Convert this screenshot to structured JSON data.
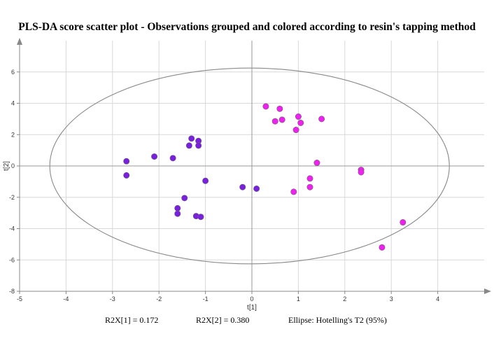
{
  "chart_data": {
    "type": "scatter",
    "title": "PLS-DA score scatter plot - Observations grouped and colored according to resin's tapping method",
    "xlabel": "t[1]",
    "ylabel": "t[2]",
    "xlim": [
      -5,
      5
    ],
    "ylim": [
      -8,
      8
    ],
    "xticks": [
      -5,
      -4,
      -3,
      -2,
      -1,
      0,
      1,
      2,
      3,
      4
    ],
    "yticks": [
      -8,
      -6,
      -4,
      -2,
      0,
      2,
      4,
      6
    ],
    "grid": true,
    "series": [
      {
        "color": "#7a1fe0",
        "points": [
          [
            -2.7,
            0.3
          ],
          [
            -2.7,
            -0.6
          ],
          [
            -2.1,
            0.6
          ],
          [
            -1.7,
            0.5
          ],
          [
            -1.3,
            1.75
          ],
          [
            -1.35,
            1.3
          ],
          [
            -1.15,
            1.6
          ],
          [
            -1.15,
            1.3
          ],
          [
            -1.0,
            -0.95
          ],
          [
            -1.45,
            -2.05
          ],
          [
            -1.6,
            -2.7
          ],
          [
            -1.6,
            -3.05
          ],
          [
            -1.2,
            -3.2
          ],
          [
            -1.1,
            -3.25
          ],
          [
            -0.2,
            -1.35
          ],
          [
            0.1,
            -1.45
          ]
        ]
      },
      {
        "color": "#f020f0",
        "points": [
          [
            0.3,
            3.8
          ],
          [
            0.6,
            3.65
          ],
          [
            0.5,
            2.85
          ],
          [
            0.65,
            2.95
          ],
          [
            1.0,
            3.15
          ],
          [
            1.05,
            2.75
          ],
          [
            0.95,
            2.3
          ],
          [
            1.5,
            3.0
          ],
          [
            1.4,
            0.2
          ],
          [
            1.25,
            -0.8
          ],
          [
            1.25,
            -1.35
          ],
          [
            0.9,
            -1.65
          ],
          [
            2.35,
            -0.25
          ],
          [
            2.35,
            -0.4
          ],
          [
            3.25,
            -3.6
          ],
          [
            2.8,
            -5.2
          ]
        ]
      }
    ],
    "ellipse": {
      "cx": -0.05,
      "cy": 0.0,
      "rx": 4.3,
      "ry": 6.25,
      "label": "Ellipse: Hotelling's T2 (95%)"
    }
  },
  "footer": {
    "r2x1": "R2X[1] = 0.172",
    "r2x2": "R2X[2] = 0.380",
    "ellipse": "Ellipse: Hotelling's T2 (95%)"
  }
}
